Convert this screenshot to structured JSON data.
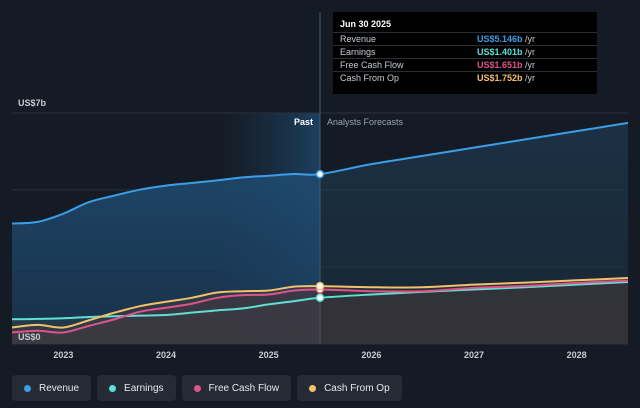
{
  "chart_data": {
    "type": "area",
    "y_axis_top_label": "US$7b",
    "y_axis_bottom_label": "US$0",
    "ylim": [
      0,
      7
    ],
    "xlim": [
      2022.5,
      2028.5
    ],
    "x_ticks": [
      2023,
      2024,
      2025,
      2026,
      2027,
      2028
    ],
    "x_tick_labels": [
      "2023",
      "2024",
      "2025",
      "2026",
      "2027",
      "2028"
    ],
    "past_label": "Past",
    "forecast_label": "Analysts Forecasts",
    "past_end": 2025.5,
    "series": [
      {
        "name": "Revenue",
        "color": "#3a9ee8",
        "past": [
          [
            2022.5,
            3.65
          ],
          [
            2022.75,
            3.7
          ],
          [
            2023,
            3.95
          ],
          [
            2023.25,
            4.3
          ],
          [
            2023.5,
            4.5
          ],
          [
            2023.75,
            4.68
          ],
          [
            2024,
            4.8
          ],
          [
            2024.25,
            4.88
          ],
          [
            2024.5,
            4.96
          ],
          [
            2024.75,
            5.05
          ],
          [
            2025,
            5.1
          ],
          [
            2025.25,
            5.15
          ],
          [
            2025.5,
            5.146
          ]
        ],
        "forecast": [
          [
            2025.5,
            5.146
          ],
          [
            2026,
            5.45
          ],
          [
            2026.5,
            5.7
          ],
          [
            2027,
            5.95
          ],
          [
            2027.5,
            6.2
          ],
          [
            2028,
            6.45
          ],
          [
            2028.5,
            6.7
          ]
        ]
      },
      {
        "name": "Earnings",
        "color": "#5ee0d6",
        "past": [
          [
            2022.5,
            0.75
          ],
          [
            2022.75,
            0.76
          ],
          [
            2023,
            0.78
          ],
          [
            2023.25,
            0.82
          ],
          [
            2023.5,
            0.84
          ],
          [
            2023.75,
            0.86
          ],
          [
            2024,
            0.88
          ],
          [
            2024.25,
            0.95
          ],
          [
            2024.5,
            1.02
          ],
          [
            2024.75,
            1.08
          ],
          [
            2025,
            1.2
          ],
          [
            2025.25,
            1.3
          ],
          [
            2025.5,
            1.401
          ]
        ],
        "forecast": [
          [
            2025.5,
            1.401
          ],
          [
            2026,
            1.5
          ],
          [
            2026.5,
            1.58
          ],
          [
            2027,
            1.65
          ],
          [
            2027.5,
            1.72
          ],
          [
            2028,
            1.8
          ],
          [
            2028.5,
            1.88
          ]
        ]
      },
      {
        "name": "Free Cash Flow",
        "color": "#e0538a",
        "past": [
          [
            2022.5,
            0.35
          ],
          [
            2022.75,
            0.4
          ],
          [
            2023,
            0.35
          ],
          [
            2023.25,
            0.55
          ],
          [
            2023.5,
            0.75
          ],
          [
            2023.75,
            0.98
          ],
          [
            2024,
            1.1
          ],
          [
            2024.25,
            1.22
          ],
          [
            2024.5,
            1.4
          ],
          [
            2024.75,
            1.48
          ],
          [
            2025,
            1.5
          ],
          [
            2025.25,
            1.62
          ],
          [
            2025.5,
            1.651
          ]
        ],
        "forecast": [
          [
            2025.5,
            1.651
          ],
          [
            2026,
            1.6
          ],
          [
            2026.5,
            1.6
          ],
          [
            2027,
            1.7
          ],
          [
            2027.5,
            1.76
          ],
          [
            2028,
            1.85
          ],
          [
            2028.5,
            1.92
          ]
        ]
      },
      {
        "name": "Cash From Op",
        "color": "#f2c26b",
        "past": [
          [
            2022.5,
            0.5
          ],
          [
            2022.75,
            0.58
          ],
          [
            2023,
            0.5
          ],
          [
            2023.25,
            0.72
          ],
          [
            2023.5,
            0.95
          ],
          [
            2023.75,
            1.15
          ],
          [
            2024,
            1.28
          ],
          [
            2024.25,
            1.4
          ],
          [
            2024.5,
            1.56
          ],
          [
            2024.75,
            1.6
          ],
          [
            2025,
            1.62
          ],
          [
            2025.25,
            1.74
          ],
          [
            2025.5,
            1.752
          ]
        ],
        "forecast": [
          [
            2025.5,
            1.752
          ],
          [
            2026,
            1.72
          ],
          [
            2026.5,
            1.72
          ],
          [
            2027,
            1.8
          ],
          [
            2027.5,
            1.86
          ],
          [
            2028,
            1.93
          ],
          [
            2028.5,
            2.0
          ]
        ]
      }
    ]
  },
  "tooltip": {
    "date": "Jun 30 2025",
    "rows": [
      {
        "label": "Revenue",
        "value": "US$5.146b",
        "unit": " /yr",
        "color": "#3a9ee8"
      },
      {
        "label": "Earnings",
        "value": "US$1.401b",
        "unit": " /yr",
        "color": "#5ee0d6"
      },
      {
        "label": "Free Cash Flow",
        "value": "US$1.651b",
        "unit": " /yr",
        "color": "#e0538a"
      },
      {
        "label": "Cash From Op",
        "value": "US$1.752b",
        "unit": " /yr",
        "color": "#f2c26b"
      }
    ]
  },
  "legend": [
    {
      "label": "Revenue",
      "color": "#3a9ee8"
    },
    {
      "label": "Earnings",
      "color": "#5ee0d6"
    },
    {
      "label": "Free Cash Flow",
      "color": "#e0538a"
    },
    {
      "label": "Cash From Op",
      "color": "#f2c26b"
    }
  ]
}
